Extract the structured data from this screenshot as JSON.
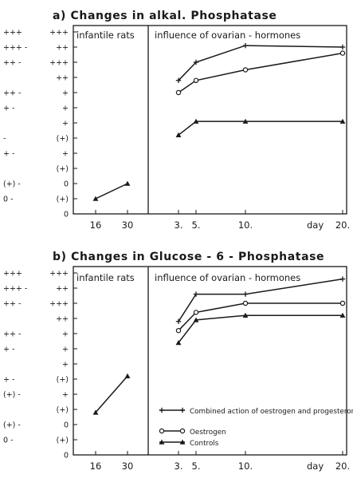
{
  "chart_data": [
    {
      "type": "line",
      "title": "a) Changes in alkal. Phosphatase",
      "section_left": "infantile rats",
      "section_right": "influence of ovarian - hormones",
      "xlabel": "day",
      "x_ticks": [
        "16",
        "30",
        "3.",
        "5.",
        "10.",
        "20."
      ],
      "y_labels_left": [
        "+++",
        "+++ -",
        "++ -",
        "",
        "++ -",
        "+ -",
        "",
        "-",
        "+ -",
        "",
        "(+) -",
        "0 -",
        ""
      ],
      "y_labels_right": [
        "+++",
        "++",
        "+++",
        "++",
        "+",
        "+",
        "+",
        "(+)",
        "+",
        "(+)",
        "0",
        "(+)",
        "0"
      ],
      "series": [
        {
          "marker": "plus",
          "x": [
            3,
            5,
            10,
            20
          ],
          "y": [
            8.8,
            10.0,
            11.1,
            11.0
          ]
        },
        {
          "marker": "circle",
          "x": [
            3,
            5,
            10,
            20
          ],
          "y": [
            8.0,
            8.8,
            9.5,
            10.6
          ]
        },
        {
          "marker": "triangle",
          "x": [
            16,
            30,
            3,
            5,
            10,
            20
          ],
          "y": [
            1.0,
            2.0,
            5.2,
            6.1,
            6.1,
            6.1
          ]
        }
      ]
    },
    {
      "type": "line",
      "title": "b) Changes in Glucose - 6 - Phosphatase",
      "section_left": "infantile rats",
      "section_right": "influence of ovarian - hormones",
      "xlabel": "day",
      "x_ticks": [
        "16",
        "30",
        "3.",
        "5.",
        "10.",
        "20."
      ],
      "y_labels_left": [
        "+++",
        "+++ -",
        "++ -",
        "",
        "++ -",
        "+ -",
        "",
        "+ -",
        "(+) -",
        "",
        "(+) -",
        "0 -",
        ""
      ],
      "y_labels_right": [
        "+++",
        "++",
        "+++",
        "++",
        "+",
        "+",
        "+",
        "(+)",
        "+",
        "(+)",
        "0",
        "(+)",
        "0"
      ],
      "series": [
        {
          "marker": "plus",
          "name": "Combined action of oestrogen and progesterone",
          "x": [
            3,
            5,
            10,
            20
          ],
          "y": [
            8.8,
            10.6,
            10.6,
            11.6
          ]
        },
        {
          "marker": "circle",
          "name": "Oestrogen",
          "x": [
            3,
            5,
            10,
            20
          ],
          "y": [
            8.2,
            9.4,
            10.0,
            10.0
          ]
        },
        {
          "marker": "triangle",
          "name": "Controls",
          "x": [
            16,
            30,
            3,
            5,
            10,
            20
          ],
          "y": [
            2.8,
            5.2,
            7.4,
            8.9,
            9.2,
            9.2
          ]
        }
      ]
    }
  ]
}
